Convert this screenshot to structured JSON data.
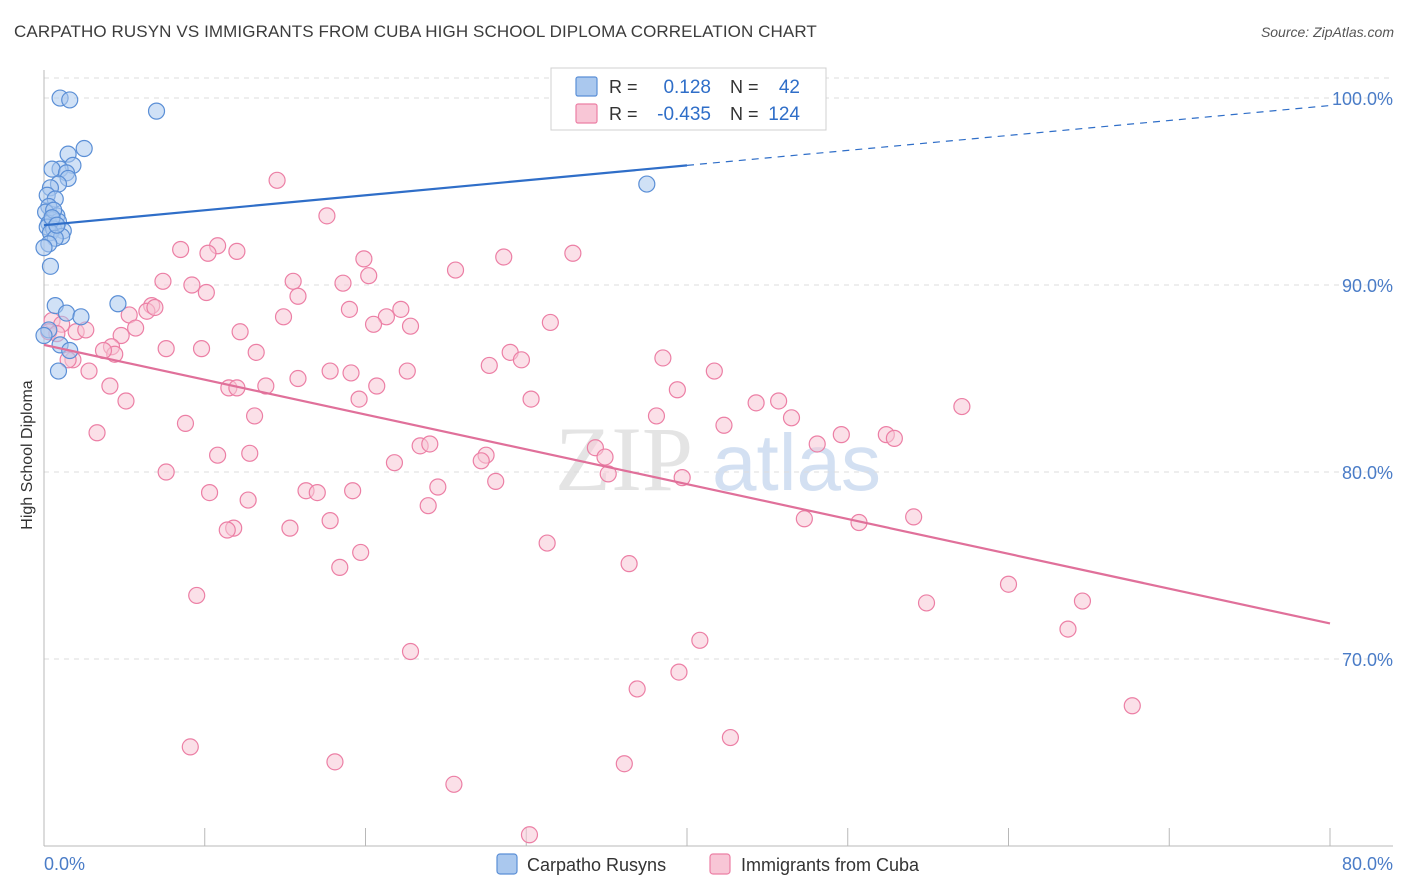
{
  "title": "CARPATHO RUSYN VS IMMIGRANTS FROM CUBA HIGH SCHOOL DIPLOMA CORRELATION CHART",
  "source": "Source: ZipAtlas.com",
  "watermark": {
    "zip": "ZIP",
    "atlas": "atlas"
  },
  "colors": {
    "blue": "#5b8fd6",
    "blue_fill": "#aac8ee",
    "blue_line": "#2f6ec8",
    "pink": "#ec7fa5",
    "pink_fill": "#f8c6d6",
    "pink_line": "#e0709a",
    "axis_text": "#4a7cc7",
    "grid": "#dddddd"
  },
  "legend": {
    "rows": [
      {
        "r_label": "R =",
        "r_value": "0.128",
        "n_label": "N =",
        "n_value": "42"
      },
      {
        "r_label": "R =",
        "r_value": "-0.435",
        "n_label": "N =",
        "n_value": "124"
      }
    ]
  },
  "chart_data": {
    "type": "scatter",
    "title": "CARPATHO RUSYN VS IMMIGRANTS FROM CUBA HIGH SCHOOL DIPLOMA CORRELATION CHART",
    "xlabel": "",
    "ylabel": "High School Diploma",
    "xlim": [
      0,
      80
    ],
    "ylim": [
      60,
      101.5
    ],
    "x_tick_labels": [
      "0.0%",
      "80.0%"
    ],
    "y_ticks": [
      70,
      80,
      90,
      100
    ],
    "y_tick_labels": [
      "70.0%",
      "80.0%",
      "90.0%",
      "100.0%"
    ],
    "legend_position": "top-center",
    "series": [
      {
        "name": "Carpatho Rusyns",
        "color": "blue",
        "R": 0.128,
        "N": 42,
        "trend": {
          "x_start": 0,
          "y_start": 93.2,
          "x_solid_end": 40,
          "y_solid_end": 96.4,
          "x_end": 80,
          "y_end": 99.6
        },
        "points": [
          [
            1.0,
            100.0
          ],
          [
            1.6,
            99.9
          ],
          [
            7.0,
            99.3
          ],
          [
            2.5,
            97.3
          ],
          [
            1.5,
            97.0
          ],
          [
            1.8,
            96.4
          ],
          [
            1.0,
            96.2
          ],
          [
            0.5,
            96.2
          ],
          [
            1.4,
            96.0
          ],
          [
            1.5,
            95.7
          ],
          [
            0.9,
            95.4
          ],
          [
            0.4,
            95.2
          ],
          [
            0.2,
            94.8
          ],
          [
            0.7,
            94.6
          ],
          [
            0.3,
            94.2
          ],
          [
            0.1,
            93.9
          ],
          [
            0.8,
            93.7
          ],
          [
            0.5,
            93.5
          ],
          [
            0.3,
            93.3
          ],
          [
            0.9,
            93.4
          ],
          [
            0.2,
            93.1
          ],
          [
            0.6,
            93.0
          ],
          [
            1.2,
            92.9
          ],
          [
            0.4,
            92.8
          ],
          [
            1.1,
            92.6
          ],
          [
            0.7,
            92.5
          ],
          [
            0.3,
            92.2
          ],
          [
            0.0,
            92.0
          ],
          [
            0.4,
            91.0
          ],
          [
            4.6,
            89.0
          ],
          [
            0.7,
            88.9
          ],
          [
            1.4,
            88.5
          ],
          [
            2.3,
            88.3
          ],
          [
            0.3,
            87.6
          ],
          [
            0.0,
            87.3
          ],
          [
            1.0,
            86.8
          ],
          [
            1.6,
            86.5
          ],
          [
            0.9,
            85.4
          ],
          [
            37.5,
            95.4
          ],
          [
            0.6,
            94.0
          ],
          [
            0.5,
            93.6
          ],
          [
            0.8,
            93.2
          ]
        ]
      },
      {
        "name": "Immigrants from Cuba",
        "color": "pink",
        "R": -0.435,
        "N": 124,
        "trend": {
          "x_start": 0,
          "y_start": 86.8,
          "x_end": 80,
          "y_end": 71.9
        },
        "points": [
          [
            14.5,
            95.6
          ],
          [
            17.6,
            93.7
          ],
          [
            8.5,
            91.9
          ],
          [
            10.8,
            92.1
          ],
          [
            10.2,
            91.7
          ],
          [
            12.0,
            91.8
          ],
          [
            19.9,
            91.4
          ],
          [
            28.6,
            91.5
          ],
          [
            32.9,
            91.7
          ],
          [
            25.6,
            90.8
          ],
          [
            20.2,
            90.5
          ],
          [
            7.4,
            90.2
          ],
          [
            9.2,
            90.0
          ],
          [
            15.5,
            90.2
          ],
          [
            18.6,
            90.1
          ],
          [
            10.1,
            89.6
          ],
          [
            15.8,
            89.4
          ],
          [
            6.7,
            88.9
          ],
          [
            6.4,
            88.6
          ],
          [
            19.0,
            88.7
          ],
          [
            22.2,
            88.7
          ],
          [
            14.9,
            88.3
          ],
          [
            21.3,
            88.3
          ],
          [
            5.3,
            88.4
          ],
          [
            0.5,
            88.1
          ],
          [
            1.1,
            87.9
          ],
          [
            0.3,
            87.5
          ],
          [
            0.8,
            87.4
          ],
          [
            2.0,
            87.5
          ],
          [
            2.6,
            87.6
          ],
          [
            4.8,
            87.3
          ],
          [
            5.7,
            87.7
          ],
          [
            12.2,
            87.5
          ],
          [
            20.5,
            87.9
          ],
          [
            22.8,
            87.8
          ],
          [
            31.5,
            88.0
          ],
          [
            4.2,
            86.7
          ],
          [
            4.4,
            86.3
          ],
          [
            7.6,
            86.6
          ],
          [
            1.8,
            86.0
          ],
          [
            13.2,
            86.4
          ],
          [
            29.0,
            86.4
          ],
          [
            29.7,
            86.0
          ],
          [
            27.7,
            85.7
          ],
          [
            38.5,
            86.1
          ],
          [
            2.8,
            85.4
          ],
          [
            15.8,
            85.0
          ],
          [
            17.8,
            85.4
          ],
          [
            19.1,
            85.3
          ],
          [
            22.6,
            85.4
          ],
          [
            41.7,
            85.4
          ],
          [
            4.1,
            84.6
          ],
          [
            11.5,
            84.5
          ],
          [
            12.0,
            84.5
          ],
          [
            13.8,
            84.6
          ],
          [
            20.7,
            84.6
          ],
          [
            39.4,
            84.4
          ],
          [
            5.1,
            83.8
          ],
          [
            19.6,
            83.9
          ],
          [
            30.3,
            83.9
          ],
          [
            44.3,
            83.7
          ],
          [
            45.7,
            83.8
          ],
          [
            57.1,
            83.5
          ],
          [
            13.1,
            83.0
          ],
          [
            38.1,
            83.0
          ],
          [
            46.5,
            82.9
          ],
          [
            8.8,
            82.6
          ],
          [
            42.3,
            82.5
          ],
          [
            3.3,
            82.1
          ],
          [
            49.6,
            82.0
          ],
          [
            52.4,
            82.0
          ],
          [
            52.9,
            81.8
          ],
          [
            48.1,
            81.5
          ],
          [
            23.4,
            81.4
          ],
          [
            24.0,
            81.5
          ],
          [
            34.3,
            81.3
          ],
          [
            12.8,
            81.0
          ],
          [
            10.8,
            80.9
          ],
          [
            27.5,
            80.9
          ],
          [
            34.9,
            80.8
          ],
          [
            27.2,
            80.6
          ],
          [
            21.8,
            80.5
          ],
          [
            7.6,
            80.0
          ],
          [
            35.1,
            79.9
          ],
          [
            39.7,
            79.7
          ],
          [
            28.1,
            79.5
          ],
          [
            24.5,
            79.2
          ],
          [
            19.2,
            79.0
          ],
          [
            16.3,
            79.0
          ],
          [
            17.0,
            78.9
          ],
          [
            10.3,
            78.9
          ],
          [
            12.7,
            78.5
          ],
          [
            23.9,
            78.2
          ],
          [
            17.8,
            77.4
          ],
          [
            47.3,
            77.5
          ],
          [
            50.7,
            77.3
          ],
          [
            54.1,
            77.6
          ],
          [
            11.8,
            77.0
          ],
          [
            11.4,
            76.9
          ],
          [
            15.3,
            77.0
          ],
          [
            31.3,
            76.2
          ],
          [
            19.7,
            75.7
          ],
          [
            18.4,
            74.9
          ],
          [
            36.4,
            75.1
          ],
          [
            60.0,
            74.0
          ],
          [
            9.5,
            73.4
          ],
          [
            54.9,
            73.0
          ],
          [
            64.6,
            73.1
          ],
          [
            63.7,
            71.6
          ],
          [
            40.8,
            71.0
          ],
          [
            22.8,
            70.4
          ],
          [
            39.5,
            69.3
          ],
          [
            36.9,
            68.4
          ],
          [
            67.7,
            67.5
          ],
          [
            42.7,
            65.8
          ],
          [
            9.1,
            65.3
          ],
          [
            18.1,
            64.5
          ],
          [
            36.1,
            64.4
          ],
          [
            25.5,
            63.3
          ],
          [
            30.2,
            60.6
          ],
          [
            1.5,
            86.0
          ],
          [
            6.9,
            88.8
          ],
          [
            3.7,
            86.5
          ],
          [
            9.8,
            86.6
          ]
        ]
      }
    ]
  }
}
